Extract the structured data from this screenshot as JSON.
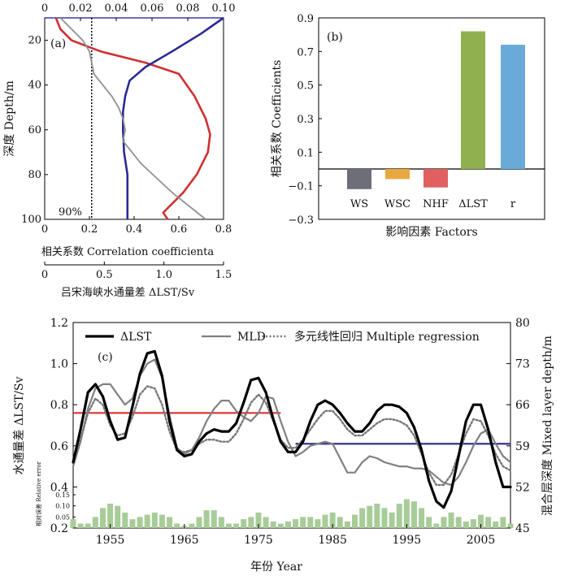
{
  "chart_data": [
    {
      "id": "a",
      "type": "line",
      "panel_label": "(a)",
      "ylabel": "深度 Depth/m",
      "ylim": [
        100,
        10
      ],
      "yticks": [
        "20",
        "40",
        "60",
        "80",
        "100"
      ],
      "top_axis": {
        "range": [
          0,
          0.1
        ],
        "ticks": [
          "0",
          "0.02",
          "0.04",
          "0.06",
          "0.08",
          "0.10"
        ]
      },
      "bottom_axis_1": {
        "label": "相关系数 Correlation coefficienta",
        "range": [
          0,
          0.8
        ],
        "ticks": [
          "0",
          "0.2",
          "0.4",
          "0.6",
          "0.8"
        ]
      },
      "bottom_axis_2": {
        "label": "吕宋海峡水通量差 ΔLST/Sv",
        "range": [
          0,
          1.5
        ],
        "ticks": [
          "0",
          "0.5",
          "1.0",
          "1.5"
        ]
      },
      "significance": {
        "label": "90%",
        "x": 0.21
      },
      "series": [
        {
          "name": "red",
          "color": "#d03030",
          "x": [
            0.05,
            0.07,
            0.12,
            0.25,
            0.45,
            0.6,
            0.67,
            0.72,
            0.74,
            0.73,
            0.68,
            0.62,
            0.56,
            0.53,
            0.55
          ],
          "y": [
            10,
            15,
            20,
            25,
            30,
            35,
            45,
            55,
            62,
            70,
            80,
            88,
            94,
            97,
            100
          ]
        },
        {
          "name": "blue",
          "color": "#2a2a95",
          "x": [
            0.8,
            0.7,
            0.57,
            0.45,
            0.38,
            0.36,
            0.35,
            0.35,
            0.355,
            0.37,
            0.37,
            0.37
          ],
          "y": [
            10,
            17,
            25,
            32,
            38,
            45,
            52,
            60,
            70,
            80,
            90,
            100
          ]
        },
        {
          "name": "gray",
          "color": "#909090",
          "x": [
            0.07,
            0.12,
            0.17,
            0.2,
            0.21,
            0.22,
            0.26,
            0.3,
            0.33,
            0.35,
            0.36,
            0.35,
            0.43,
            0.57,
            0.72
          ],
          "y": [
            10,
            15,
            20,
            25,
            30,
            35,
            40,
            45,
            50,
            55,
            60,
            65,
            75,
            88,
            100
          ]
        }
      ]
    },
    {
      "id": "b",
      "type": "bar",
      "panel_label": "(b)",
      "title": "",
      "xlabel": "影响因素 Factors",
      "ylabel": "相关系数 Coefficients",
      "ylim": [
        -0.3,
        0.9
      ],
      "yticks": [
        "−0.3",
        "−0.1",
        "0.1",
        "0.3",
        "0.5",
        "0.7",
        "0.9"
      ],
      "categories": [
        "WS",
        "WSC",
        "NHF",
        "ΔLST",
        "r"
      ],
      "values": [
        -0.12,
        -0.06,
        -0.11,
        0.82,
        0.74
      ],
      "colors": [
        "#6e6e78",
        "#e8a840",
        "#e06060",
        "#90b050",
        "#6aaad8"
      ]
    },
    {
      "id": "c",
      "type": "line",
      "panel_label": "(c)",
      "xlabel": "年份 Year",
      "ylabel_left": "水通量差 ΔLST/Sv",
      "ylabel_right": "混合层深度 Mixed layer depth/m",
      "xlim": [
        1950,
        2009
      ],
      "ylim_left": [
        0.2,
        1.2
      ],
      "ylim_right": [
        45,
        80
      ],
      "xticks": [
        "1955",
        "1965",
        "1975",
        "1985",
        "1995",
        "2005"
      ],
      "yticks_left": [
        "0.2",
        "0.4",
        "0.6",
        "0.8",
        "1.0",
        "1.2"
      ],
      "yticks_right": [
        "45",
        "52",
        "59",
        "66",
        "73",
        "80"
      ],
      "legend": [
        "ΔLST",
        "MLD",
        "多元线性回归 Multiple regression"
      ],
      "series": [
        {
          "name": "ΔLST",
          "color": "#000000",
          "x": [
            1950,
            1951,
            1952,
            1953,
            1954,
            1955,
            1956,
            1957,
            1958,
            1959,
            1960,
            1961,
            1962,
            1963,
            1964,
            1965,
            1966,
            1967,
            1968,
            1969,
            1970,
            1971,
            1972,
            1973,
            1974,
            1975,
            1976,
            1977,
            1978,
            1979,
            1980,
            1981,
            1982,
            1983,
            1984,
            1985,
            1986,
            1987,
            1988,
            1989,
            1990,
            1991,
            1992,
            1993,
            1994,
            1995,
            1996,
            1997,
            1998,
            1999,
            2000,
            2001,
            2002,
            2003,
            2004,
            2005,
            2006,
            2007,
            2008,
            2009
          ],
          "values": [
            0.52,
            0.68,
            0.86,
            0.9,
            0.84,
            0.72,
            0.63,
            0.64,
            0.79,
            0.95,
            1.05,
            1.06,
            0.94,
            0.72,
            0.58,
            0.55,
            0.56,
            0.62,
            0.66,
            0.68,
            0.67,
            0.67,
            0.71,
            0.81,
            0.92,
            0.93,
            0.86,
            0.73,
            0.62,
            0.57,
            0.57,
            0.62,
            0.72,
            0.8,
            0.82,
            0.8,
            0.76,
            0.71,
            0.67,
            0.67,
            0.71,
            0.77,
            0.8,
            0.8,
            0.79,
            0.76,
            0.69,
            0.58,
            0.43,
            0.33,
            0.3,
            0.38,
            0.55,
            0.72,
            0.8,
            0.8,
            0.68,
            0.52,
            0.4,
            0.4
          ]
        },
        {
          "name": "MLD",
          "color": "#808080",
          "x": [
            1950,
            1951,
            1952,
            1953,
            1954,
            1955,
            1956,
            1957,
            1958,
            1959,
            1960,
            1961,
            1962,
            1963,
            1964,
            1965,
            1966,
            1967,
            1968,
            1969,
            1970,
            1971,
            1972,
            1973,
            1974,
            1975,
            1976,
            1977,
            1978,
            1979,
            1980,
            1981,
            1982,
            1983,
            1984,
            1985,
            1986,
            1987,
            1988,
            1989,
            1990,
            1991,
            1992,
            1993,
            1994,
            1995,
            1996,
            1997,
            1998,
            1999,
            2000,
            2001,
            2002,
            2003,
            2004,
            2005,
            2006,
            2007,
            2008,
            2009
          ],
          "values": [
            0.5,
            0.62,
            0.78,
            0.88,
            0.9,
            0.9,
            0.85,
            0.8,
            0.83,
            0.94,
            1.0,
            1.02,
            0.93,
            0.75,
            0.59,
            0.56,
            0.58,
            0.64,
            0.72,
            0.78,
            0.82,
            0.82,
            0.77,
            0.74,
            0.72,
            0.76,
            0.84,
            0.83,
            0.72,
            0.62,
            0.55,
            0.57,
            0.6,
            0.61,
            0.62,
            0.61,
            0.54,
            0.47,
            0.47,
            0.52,
            0.55,
            0.54,
            0.52,
            0.51,
            0.5,
            0.5,
            0.49,
            0.49,
            0.48,
            0.45,
            0.42,
            0.41,
            0.45,
            0.52,
            0.6,
            0.66,
            0.68,
            0.61,
            0.55,
            0.52
          ]
        },
        {
          "name": "多元线性回归 Multiple regression",
          "color": "#777777",
          "x": [
            1950,
            1951,
            1952,
            1953,
            1954,
            1955,
            1956,
            1957,
            1958,
            1959,
            1960,
            1961,
            1962,
            1963,
            1964,
            1965,
            1966,
            1967,
            1968,
            1969,
            1970,
            1971,
            1972,
            1973,
            1974,
            1975,
            1976,
            1977,
            1978,
            1979,
            1980,
            1981,
            1982,
            1983,
            1984,
            1985,
            1986,
            1987,
            1988,
            1989,
            1990,
            1991,
            1992,
            1993,
            1994,
            1995,
            1996,
            1997,
            1998,
            1999,
            2000,
            2001,
            2002,
            2003,
            2004,
            2005,
            2006,
            2007,
            2008,
            2009
          ],
          "values": [
            0.52,
            0.63,
            0.76,
            0.83,
            0.8,
            0.7,
            0.65,
            0.66,
            0.74,
            0.85,
            0.89,
            0.88,
            0.8,
            0.67,
            0.58,
            0.57,
            0.58,
            0.61,
            0.63,
            0.63,
            0.62,
            0.62,
            0.66,
            0.73,
            0.81,
            0.85,
            0.81,
            0.72,
            0.63,
            0.59,
            0.59,
            0.63,
            0.68,
            0.73,
            0.77,
            0.77,
            0.73,
            0.68,
            0.65,
            0.65,
            0.68,
            0.71,
            0.73,
            0.73,
            0.72,
            0.7,
            0.65,
            0.56,
            0.47,
            0.41,
            0.41,
            0.46,
            0.56,
            0.66,
            0.73,
            0.72,
            0.65,
            0.56,
            0.5,
            0.48
          ]
        }
      ],
      "mean_lines": [
        {
          "color": "#e03030",
          "x": [
            1950,
            1978
          ],
          "value": 0.76
        },
        {
          "color": "#33339a",
          "x": [
            1980,
            2009
          ],
          "value": 0.61
        }
      ],
      "relative_error": {
        "label": "相对误差 Relative error",
        "ylim": [
          0,
          0.15
        ],
        "yticks": [
          "0.05",
          "0.10",
          "0.15"
        ],
        "color": "#a8cc98",
        "x": [
          1950,
          1951,
          1952,
          1953,
          1954,
          1955,
          1956,
          1957,
          1958,
          1959,
          1960,
          1961,
          1962,
          1963,
          1964,
          1965,
          1966,
          1967,
          1968,
          1969,
          1970,
          1971,
          1972,
          1973,
          1974,
          1975,
          1976,
          1977,
          1978,
          1979,
          1980,
          1981,
          1982,
          1983,
          1984,
          1985,
          1986,
          1987,
          1988,
          1989,
          1990,
          1991,
          1992,
          1993,
          1994,
          1995,
          1996,
          1997,
          1998,
          1999,
          2000,
          2001,
          2002,
          2003,
          2004,
          2005,
          2006,
          2007,
          2008,
          2009
        ],
        "values": [
          0.04,
          0.02,
          0.02,
          0.05,
          0.09,
          0.11,
          0.1,
          0.07,
          0.04,
          0.05,
          0.06,
          0.07,
          0.06,
          0.05,
          0.02,
          0.01,
          0.02,
          0.05,
          0.08,
          0.08,
          0.05,
          0.02,
          0.02,
          0.04,
          0.05,
          0.07,
          0.05,
          0.03,
          0.02,
          0.03,
          0.04,
          0.05,
          0.05,
          0.04,
          0.06,
          0.07,
          0.05,
          0.03,
          0.06,
          0.09,
          0.1,
          0.11,
          0.09,
          0.07,
          0.11,
          0.13,
          0.12,
          0.09,
          0.05,
          0.02,
          0.05,
          0.07,
          0.05,
          0.03,
          0.04,
          0.06,
          0.05,
          0.03,
          0.05,
          0.02
        ]
      }
    }
  ]
}
